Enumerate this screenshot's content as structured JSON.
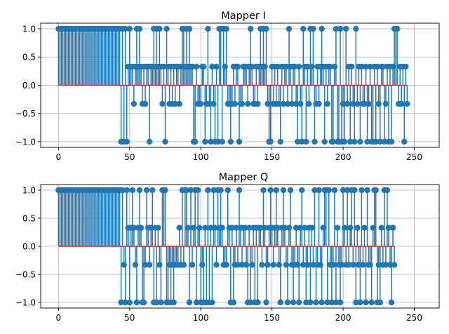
{
  "chart_data": [
    {
      "type": "stem",
      "title": "Mapper I",
      "xlabel": "",
      "ylabel": "",
      "xlim": [
        -12.5,
        267.5
      ],
      "ylim": [
        -1.1,
        1.1
      ],
      "xticks": [
        0,
        50,
        100,
        150,
        200,
        250
      ],
      "yticks": [
        1.0,
        0.5,
        0.0,
        -0.5,
        -1.0
      ],
      "ytick_labels": [
        "1.0",
        "0.5",
        "0.0",
        "−0.5",
        "−1.0"
      ],
      "grid": true,
      "colors": {
        "stem": "#1f77b4",
        "baseline": "#d62728"
      },
      "series": [
        {
          "x_start": 0,
          "values": [
            1,
            1,
            1,
            1,
            1,
            1,
            1,
            1,
            1,
            1,
            1,
            1,
            1,
            1,
            1,
            1,
            1,
            1,
            1,
            1,
            1,
            1,
            1,
            1,
            1,
            1,
            1,
            1,
            1,
            1,
            1,
            1,
            1,
            1,
            1,
            1,
            1,
            1,
            1,
            1,
            1,
            1,
            1,
            1,
            -1,
            1,
            -1,
            1,
            -1,
            0.33,
            1,
            0.33,
            0.33,
            -0.33,
            0.33,
            1,
            0.33,
            1,
            0.33,
            -0.33,
            0.33,
            -0.33,
            0.33,
            0.33,
            -1,
            0.33,
            0.33,
            1,
            0.33,
            1,
            0.33,
            1,
            0.33,
            -0.33,
            0.33,
            -1,
            1,
            0.33,
            -0.33,
            0.33,
            -0.33,
            0.33,
            -0.33,
            0.33,
            0.33,
            -0.33,
            0.33,
            1,
            1,
            0.33,
            1,
            0.33,
            1,
            0.33,
            0.33,
            -1,
            -1,
            0.33,
            -0.33,
            -0.33,
            -0.33,
            0.33,
            0.33,
            -1,
            -0.33,
            1,
            -0.33,
            -1,
            0.33,
            -0.33,
            -1,
            0.33,
            -1,
            1,
            1,
            -1,
            1,
            0.33,
            1,
            -0.33,
            -0.33,
            -1,
            -0.33,
            0.33,
            -0.33,
            0.33,
            0.33,
            -1,
            -0.33,
            -0.33,
            0.33,
            0.33,
            0.33,
            -0.33,
            0.33,
            1,
            0.33,
            -0.33,
            -0.33,
            0.33,
            -0.33,
            0.33,
            1,
            0.33,
            1,
            0.33,
            1,
            -0.33,
            -1,
            -1,
            0.33,
            -0.33,
            0.33,
            -0.33,
            0.33,
            -0.33,
            -1,
            0.33,
            -0.33,
            0.33,
            0.33,
            -0.33,
            1,
            0.33,
            -0.33,
            0.33,
            0.33,
            -0.33,
            -1,
            0.33,
            -0.33,
            -1,
            1,
            0.33,
            -1,
            0.33,
            -0.33,
            1,
            0.33,
            1,
            -1,
            -0.33,
            0.33,
            -0.33,
            0.33,
            1,
            0.33,
            -1,
            0.33,
            -0.33,
            0.33,
            0.33,
            -1,
            -1,
            0.33,
            1,
            -1,
            -1,
            1,
            -1,
            -0.33,
            -1,
            1,
            -0.33,
            0.33,
            -1,
            0.33,
            -0.33,
            -1,
            1,
            -0.33,
            0.33,
            -1,
            0.33,
            -0.33,
            -0.33,
            0.33,
            -1,
            -0.33,
            0.33,
            -1,
            -1,
            0.33,
            -1,
            0.33,
            -0.33,
            -1,
            0.33,
            0.33,
            -1,
            -0.33,
            0.33,
            -1,
            0.33,
            -1,
            0.33,
            1,
            1,
            1,
            -0.33,
            0.33,
            -0.33,
            0.33,
            -1,
            0.33,
            -0.33
          ]
        }
      ]
    },
    {
      "type": "stem",
      "title": "Mapper Q",
      "xlabel": "",
      "ylabel": "",
      "xlim": [
        -12.5,
        267.5
      ],
      "ylim": [
        -1.1,
        1.1
      ],
      "xticks": [
        0,
        50,
        100,
        150,
        200,
        250
      ],
      "yticks": [
        1.0,
        0.5,
        0.0,
        -0.5,
        -1.0
      ],
      "ytick_labels": [
        "1.0",
        "0.5",
        "0.0",
        "−0.5",
        "−1.0"
      ],
      "grid": true,
      "colors": {
        "stem": "#1f77b4",
        "baseline": "#d62728"
      },
      "series": [
        {
          "x_start": 0,
          "values": [
            1,
            1,
            1,
            1,
            1,
            1,
            1,
            1,
            1,
            1,
            1,
            1,
            1,
            1,
            1,
            1,
            1,
            1,
            1,
            1,
            1,
            1,
            1,
            1,
            1,
            1,
            1,
            1,
            1,
            1,
            1,
            1,
            1,
            1,
            1,
            1,
            1,
            1,
            1,
            1,
            1,
            1,
            1,
            1,
            -1,
            1,
            -0.33,
            -1,
            1,
            0.33,
            -1,
            0.33,
            1,
            0.33,
            -0.33,
            -1,
            0.33,
            1,
            0.33,
            -1,
            -1,
            -0.33,
            1,
            0.33,
            -0.33,
            0.33,
            1,
            -1,
            0.33,
            -1,
            0.33,
            -0.33,
            -1,
            1,
            1,
            1,
            -1,
            -1,
            -0.33,
            -1,
            -0.33,
            -1,
            -0.33,
            -0.33,
            -0.33,
            0.33,
            -0.33,
            1,
            -0.33,
            1,
            1,
            0.33,
            -1,
            1,
            -0.33,
            0.33,
            1,
            -1,
            1,
            0.33,
            -1,
            -0.33,
            -1,
            0.33,
            -1,
            1,
            -1,
            0.33,
            -1,
            1,
            0.33,
            -0.33,
            1,
            0.33,
            1,
            0.33,
            -0.33,
            -0.33,
            -0.33,
            1,
            0.33,
            -1,
            0.33,
            -1,
            -0.33,
            0.33,
            -0.33,
            1,
            0.33,
            -0.33,
            0.33,
            0.33,
            -0.33,
            -1,
            0.33,
            -1,
            -0.33,
            0.33,
            -1,
            0.33,
            -1,
            0.33,
            0.33,
            -0.33,
            1,
            0.33,
            -1,
            -0.33,
            0.33,
            1,
            0.33,
            -0.33,
            0.33,
            1,
            0.33,
            -0.33,
            -1,
            0.33,
            1,
            0.33,
            -0.33,
            -1,
            0.33,
            1,
            -0.33,
            -1,
            -0.33,
            0.33,
            -0.33,
            -1,
            0.33,
            1,
            -0.33,
            0.33,
            -1,
            -0.33,
            0.33,
            -1,
            0.33,
            -0.33,
            1,
            -1,
            -0.33,
            1,
            -0.33,
            -1,
            0.33,
            1,
            1,
            -1,
            1,
            -0.33,
            -1,
            -0.33,
            1,
            -1,
            0.33,
            -0.33,
            -1,
            -0.33,
            1,
            0.33,
            -0.33,
            1,
            -0.33,
            0.33,
            1,
            -0.33,
            1,
            -1,
            0.33,
            -0.33,
            -1,
            1,
            -0.33,
            0.33,
            -1,
            1,
            -0.33,
            -0.33,
            -1,
            0.33,
            1,
            1,
            -1,
            -0.33,
            -1,
            0.33,
            -0.33,
            1,
            -0.33,
            1,
            0.33,
            -0.33,
            -1,
            0.33,
            -0.33
          ]
        }
      ]
    }
  ]
}
